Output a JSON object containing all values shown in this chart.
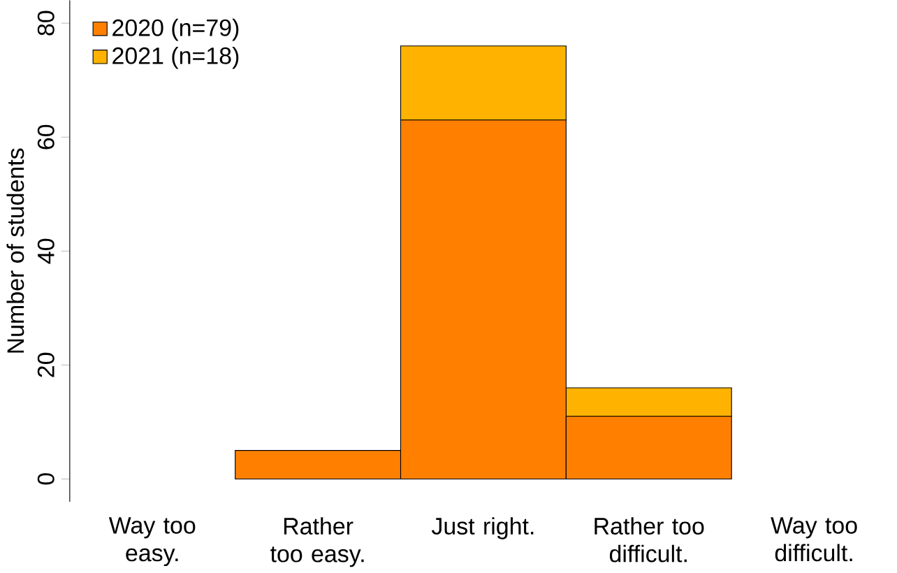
{
  "chart_data": {
    "type": "bar",
    "stacked": true,
    "ylabel": "Number of students",
    "categories": [
      "Way too easy.",
      "Rather too easy.",
      "Just right.",
      "Rather too difficult.",
      "Way too difficult."
    ],
    "series": [
      {
        "name": "2020 (n=79)",
        "color": "#ff8000",
        "values": [
          0,
          5,
          63,
          11,
          0
        ]
      },
      {
        "name": "2021 (n=18)",
        "color": "#ffb300",
        "values": [
          0,
          0,
          13,
          5,
          0
        ]
      }
    ],
    "ylim": [
      0,
      80
    ],
    "yticks": [
      0,
      20,
      40,
      60,
      80
    ],
    "legend": "top left",
    "grid": false
  }
}
